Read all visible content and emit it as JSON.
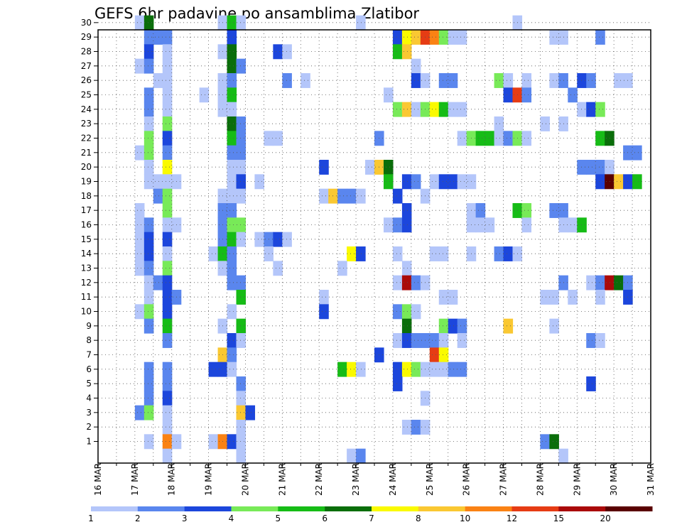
{
  "chart_data": {
    "type": "heatmap",
    "title": "GEFS 6hr padavine po ansamblima Zlatibor",
    "xlabel": "",
    "ylabel": "",
    "x_ticks": [
      "16 MAR",
      "17 MAR",
      "18 MAR",
      "19 MAR",
      "20 MAR",
      "21 MAR",
      "22 MAR",
      "23 MAR",
      "24 MAR",
      "25 MAR",
      "26 MAR",
      "27 MAR",
      "28 MAR",
      "29 MAR",
      "30 MAR",
      "31 MAR"
    ],
    "xlim_days": [
      16,
      31
    ],
    "y_ticks": [
      1,
      2,
      3,
      4,
      5,
      6,
      7,
      8,
      9,
      10,
      11,
      12,
      13,
      14,
      15,
      16,
      17,
      18,
      19,
      20,
      21,
      22,
      23,
      24,
      25,
      26,
      27,
      28,
      29,
      30
    ],
    "ylim": [
      0,
      30
    ],
    "grid": true,
    "time_step_hours": 6,
    "colorbar": {
      "labels": [
        "1",
        "2",
        "3",
        "4",
        "5",
        "6",
        "7",
        "8",
        "10",
        "12",
        "15",
        "20"
      ],
      "colors": [
        "#b4c6fa",
        "#5a86ee",
        "#1c46dc",
        "#78ea58",
        "#16bc16",
        "#0a6e0a",
        "#fafa00",
        "#fac832",
        "#fa8214",
        "#e63c14",
        "#aa0a0a",
        "#5a0000"
      ]
    },
    "cells": [
      [
        30,
        17.0,
        0
      ],
      [
        30,
        17.25,
        5
      ],
      [
        30,
        19.25,
        0
      ],
      [
        30,
        19.5,
        4
      ],
      [
        30,
        19.75,
        0
      ],
      [
        30,
        23.0,
        0
      ],
      [
        30,
        27.25,
        0
      ],
      [
        29,
        17.25,
        1
      ],
      [
        29,
        17.5,
        1
      ],
      [
        29,
        17.75,
        1
      ],
      [
        29,
        19.5,
        2
      ],
      [
        29,
        24.0,
        2
      ],
      [
        29,
        24.25,
        6
      ],
      [
        29,
        24.5,
        7
      ],
      [
        29,
        24.75,
        9
      ],
      [
        29,
        25.0,
        8
      ],
      [
        29,
        25.25,
        3
      ],
      [
        29,
        25.5,
        0
      ],
      [
        29,
        25.75,
        0
      ],
      [
        29,
        28.25,
        0
      ],
      [
        29,
        28.5,
        0
      ],
      [
        29,
        29.5,
        1
      ],
      [
        28,
        17.25,
        2
      ],
      [
        28,
        17.75,
        0
      ],
      [
        28,
        19.25,
        0
      ],
      [
        28,
        19.5,
        5
      ],
      [
        28,
        20.75,
        2
      ],
      [
        28,
        21.0,
        0
      ],
      [
        28,
        24.0,
        4
      ],
      [
        28,
        24.25,
        7
      ],
      [
        27,
        17.0,
        0
      ],
      [
        27,
        17.25,
        1
      ],
      [
        27,
        17.75,
        0
      ],
      [
        27,
        19.5,
        5
      ],
      [
        27,
        19.75,
        1
      ],
      [
        27,
        24.5,
        0
      ],
      [
        26,
        17.5,
        0
      ],
      [
        26,
        17.75,
        0
      ],
      [
        26,
        19.25,
        0
      ],
      [
        26,
        19.5,
        1
      ],
      [
        26,
        21.0,
        1
      ],
      [
        26,
        21.5,
        0
      ],
      [
        26,
        24.5,
        2
      ],
      [
        26,
        24.75,
        0
      ],
      [
        26,
        25.25,
        1
      ],
      [
        26,
        25.5,
        1
      ],
      [
        26,
        26.75,
        3
      ],
      [
        26,
        27.0,
        0
      ],
      [
        26,
        27.5,
        0
      ],
      [
        26,
        28.25,
        0
      ],
      [
        26,
        28.5,
        1
      ],
      [
        26,
        29.0,
        2
      ],
      [
        26,
        29.25,
        1
      ],
      [
        26,
        30.0,
        0
      ],
      [
        26,
        30.25,
        0
      ],
      [
        25,
        17.25,
        1
      ],
      [
        25,
        17.75,
        0
      ],
      [
        25,
        18.75,
        0
      ],
      [
        25,
        19.25,
        0
      ],
      [
        25,
        19.5,
        4
      ],
      [
        25,
        23.75,
        0
      ],
      [
        25,
        27.0,
        2
      ],
      [
        25,
        27.25,
        9
      ],
      [
        25,
        27.5,
        1
      ],
      [
        25,
        28.75,
        1
      ],
      [
        24,
        17.25,
        1
      ],
      [
        24,
        17.75,
        0
      ],
      [
        24,
        19.25,
        0
      ],
      [
        24,
        19.5,
        0
      ],
      [
        24,
        24.0,
        3
      ],
      [
        24,
        24.25,
        7
      ],
      [
        24,
        24.5,
        0
      ],
      [
        24,
        24.75,
        3
      ],
      [
        24,
        25.0,
        6
      ],
      [
        24,
        25.25,
        4
      ],
      [
        24,
        25.5,
        0
      ],
      [
        24,
        25.75,
        0
      ],
      [
        24,
        29.0,
        0
      ],
      [
        24,
        29.25,
        2
      ],
      [
        24,
        29.5,
        3
      ],
      [
        23,
        17.25,
        0
      ],
      [
        23,
        17.75,
        3
      ],
      [
        23,
        19.5,
        5
      ],
      [
        23,
        19.75,
        1
      ],
      [
        23,
        26.75,
        0
      ],
      [
        23,
        28.0,
        0
      ],
      [
        23,
        28.5,
        0
      ],
      [
        22,
        17.25,
        3
      ],
      [
        22,
        17.75,
        2
      ],
      [
        22,
        19.5,
        4
      ],
      [
        22,
        19.75,
        1
      ],
      [
        22,
        20.5,
        0
      ],
      [
        22,
        20.75,
        0
      ],
      [
        22,
        23.5,
        1
      ],
      [
        22,
        25.75,
        0
      ],
      [
        22,
        26.0,
        3
      ],
      [
        22,
        26.25,
        4
      ],
      [
        22,
        26.5,
        4
      ],
      [
        22,
        26.75,
        0
      ],
      [
        22,
        27.0,
        1
      ],
      [
        22,
        27.25,
        3
      ],
      [
        22,
        27.5,
        0
      ],
      [
        22,
        29.5,
        4
      ],
      [
        22,
        29.75,
        5
      ],
      [
        21,
        17.0,
        0
      ],
      [
        21,
        17.25,
        3
      ],
      [
        21,
        17.75,
        1
      ],
      [
        21,
        19.5,
        1
      ],
      [
        21,
        19.75,
        1
      ],
      [
        21,
        30.25,
        1
      ],
      [
        21,
        30.5,
        1
      ],
      [
        20,
        17.25,
        0
      ],
      [
        20,
        17.75,
        6
      ],
      [
        20,
        19.5,
        0
      ],
      [
        20,
        19.75,
        0
      ],
      [
        20,
        22.0,
        2
      ],
      [
        20,
        23.25,
        0
      ],
      [
        20,
        23.5,
        7
      ],
      [
        20,
        23.75,
        5
      ],
      [
        20,
        29.0,
        1
      ],
      [
        20,
        29.25,
        1
      ],
      [
        20,
        29.5,
        1
      ],
      [
        20,
        29.75,
        0
      ],
      [
        19,
        17.25,
        0
      ],
      [
        19,
        17.5,
        0
      ],
      [
        19,
        17.75,
        0
      ],
      [
        19,
        18.0,
        0
      ],
      [
        19,
        19.5,
        0
      ],
      [
        19,
        19.75,
        2
      ],
      [
        19,
        20.25,
        0
      ],
      [
        19,
        23.75,
        4
      ],
      [
        19,
        24.25,
        2
      ],
      [
        19,
        24.5,
        1
      ],
      [
        19,
        25.0,
        0
      ],
      [
        19,
        25.25,
        2
      ],
      [
        19,
        25.5,
        2
      ],
      [
        19,
        25.75,
        0
      ],
      [
        19,
        26.0,
        0
      ],
      [
        19,
        29.5,
        2
      ],
      [
        19,
        29.75,
        11
      ],
      [
        19,
        30.0,
        7
      ],
      [
        19,
        30.25,
        2
      ],
      [
        19,
        30.5,
        4
      ],
      [
        18,
        17.5,
        1
      ],
      [
        18,
        17.75,
        3
      ],
      [
        18,
        19.25,
        0
      ],
      [
        18,
        19.5,
        0
      ],
      [
        18,
        19.75,
        0
      ],
      [
        18,
        22.0,
        0
      ],
      [
        18,
        22.25,
        7
      ],
      [
        18,
        22.5,
        1
      ],
      [
        18,
        22.75,
        1
      ],
      [
        18,
        23.0,
        0
      ],
      [
        18,
        24.0,
        2
      ],
      [
        18,
        24.75,
        0
      ],
      [
        17,
        17.0,
        0
      ],
      [
        17,
        17.75,
        3
      ],
      [
        17,
        19.25,
        1
      ],
      [
        17,
        19.5,
        1
      ],
      [
        17,
        24.25,
        2
      ],
      [
        17,
        26.0,
        0
      ],
      [
        17,
        26.25,
        1
      ],
      [
        17,
        27.25,
        4
      ],
      [
        17,
        27.5,
        3
      ],
      [
        17,
        28.25,
        1
      ],
      [
        17,
        28.5,
        1
      ],
      [
        16,
        17.0,
        0
      ],
      [
        16,
        17.25,
        1
      ],
      [
        16,
        17.75,
        0
      ],
      [
        16,
        18.0,
        0
      ],
      [
        16,
        19.25,
        1
      ],
      [
        16,
        19.5,
        3
      ],
      [
        16,
        19.75,
        3
      ],
      [
        16,
        23.75,
        0
      ],
      [
        16,
        24.0,
        1
      ],
      [
        16,
        24.25,
        2
      ],
      [
        16,
        26.0,
        0
      ],
      [
        16,
        26.25,
        0
      ],
      [
        16,
        26.5,
        0
      ],
      [
        16,
        27.5,
        0
      ],
      [
        16,
        28.5,
        0
      ],
      [
        16,
        28.75,
        0
      ],
      [
        16,
        29.0,
        4
      ],
      [
        15,
        17.0,
        0
      ],
      [
        15,
        17.25,
        2
      ],
      [
        15,
        17.75,
        2
      ],
      [
        15,
        19.25,
        1
      ],
      [
        15,
        19.5,
        4
      ],
      [
        15,
        19.75,
        0
      ],
      [
        15,
        20.25,
        0
      ],
      [
        15,
        20.5,
        1
      ],
      [
        15,
        20.75,
        2
      ],
      [
        15,
        21.0,
        0
      ],
      [
        14,
        17.0,
        0
      ],
      [
        14,
        17.25,
        2
      ],
      [
        14,
        17.75,
        0
      ],
      [
        14,
        19.0,
        0
      ],
      [
        14,
        19.25,
        4
      ],
      [
        14,
        19.5,
        1
      ],
      [
        14,
        20.5,
        0
      ],
      [
        14,
        22.75,
        6
      ],
      [
        14,
        23.0,
        2
      ],
      [
        14,
        24.0,
        0
      ],
      [
        14,
        25.0,
        0
      ],
      [
        14,
        25.25,
        0
      ],
      [
        14,
        26.0,
        0
      ],
      [
        14,
        26.75,
        1
      ],
      [
        14,
        27.0,
        2
      ],
      [
        14,
        27.25,
        0
      ],
      [
        13,
        17.0,
        0
      ],
      [
        13,
        17.25,
        1
      ],
      [
        13,
        17.75,
        3
      ],
      [
        13,
        19.25,
        0
      ],
      [
        13,
        19.5,
        1
      ],
      [
        13,
        20.75,
        0
      ],
      [
        13,
        22.5,
        0
      ],
      [
        13,
        24.25,
        0
      ],
      [
        12,
        17.25,
        0
      ],
      [
        12,
        17.5,
        1
      ],
      [
        12,
        17.75,
        2
      ],
      [
        12,
        19.5,
        1
      ],
      [
        12,
        19.75,
        1
      ],
      [
        12,
        24.0,
        0
      ],
      [
        12,
        24.25,
        10
      ],
      [
        12,
        24.5,
        1
      ],
      [
        12,
        24.75,
        0
      ],
      [
        12,
        28.5,
        1
      ],
      [
        12,
        29.25,
        0
      ],
      [
        12,
        29.5,
        1
      ],
      [
        12,
        29.75,
        10
      ],
      [
        12,
        30.0,
        5
      ],
      [
        12,
        30.25,
        1
      ],
      [
        11,
        17.25,
        0
      ],
      [
        11,
        17.75,
        2
      ],
      [
        11,
        18.0,
        1
      ],
      [
        11,
        19.75,
        4
      ],
      [
        11,
        22.0,
        0
      ],
      [
        11,
        25.25,
        0
      ],
      [
        11,
        25.5,
        0
      ],
      [
        11,
        28.0,
        0
      ],
      [
        11,
        28.25,
        0
      ],
      [
        11,
        28.75,
        0
      ],
      [
        11,
        29.5,
        0
      ],
      [
        11,
        30.25,
        2
      ],
      [
        10,
        17.0,
        0
      ],
      [
        10,
        17.25,
        3
      ],
      [
        10,
        17.75,
        2
      ],
      [
        10,
        19.5,
        0
      ],
      [
        10,
        22.0,
        2
      ],
      [
        10,
        24.0,
        1
      ],
      [
        10,
        24.25,
        3
      ],
      [
        10,
        24.5,
        0
      ],
      [
        9,
        17.25,
        1
      ],
      [
        9,
        17.75,
        4
      ],
      [
        9,
        19.25,
        0
      ],
      [
        9,
        19.75,
        4
      ],
      [
        9,
        24.25,
        5
      ],
      [
        9,
        25.25,
        3
      ],
      [
        9,
        25.5,
        2
      ],
      [
        9,
        25.75,
        1
      ],
      [
        9,
        27.0,
        7
      ],
      [
        9,
        28.25,
        0
      ],
      [
        8,
        17.75,
        1
      ],
      [
        8,
        19.5,
        2
      ],
      [
        8,
        19.75,
        0
      ],
      [
        8,
        24.0,
        0
      ],
      [
        8,
        24.25,
        2
      ],
      [
        8,
        24.5,
        1
      ],
      [
        8,
        24.75,
        1
      ],
      [
        8,
        25.0,
        1
      ],
      [
        8,
        25.25,
        0
      ],
      [
        8,
        25.75,
        0
      ],
      [
        8,
        29.25,
        1
      ],
      [
        8,
        29.5,
        0
      ],
      [
        7,
        19.25,
        7
      ],
      [
        7,
        19.5,
        1
      ],
      [
        7,
        23.5,
        2
      ],
      [
        7,
        25.0,
        9
      ],
      [
        7,
        25.25,
        6
      ],
      [
        6,
        17.25,
        1
      ],
      [
        6,
        17.75,
        1
      ],
      [
        6,
        19.0,
        2
      ],
      [
        6,
        19.25,
        2
      ],
      [
        6,
        19.5,
        0
      ],
      [
        6,
        22.5,
        4
      ],
      [
        6,
        22.75,
        6
      ],
      [
        6,
        23.0,
        0
      ],
      [
        6,
        24.0,
        2
      ],
      [
        6,
        24.25,
        6
      ],
      [
        6,
        24.5,
        3
      ],
      [
        6,
        24.75,
        0
      ],
      [
        6,
        25.0,
        0
      ],
      [
        6,
        25.25,
        0
      ],
      [
        6,
        25.5,
        1
      ],
      [
        6,
        25.75,
        1
      ],
      [
        5,
        17.25,
        1
      ],
      [
        5,
        17.75,
        1
      ],
      [
        5,
        19.75,
        1
      ],
      [
        5,
        24.0,
        2
      ],
      [
        5,
        29.25,
        2
      ],
      [
        4,
        17.25,
        1
      ],
      [
        4,
        17.75,
        2
      ],
      [
        4,
        19.75,
        0
      ],
      [
        4,
        24.75,
        0
      ],
      [
        3,
        17.0,
        1
      ],
      [
        3,
        17.25,
        3
      ],
      [
        3,
        17.75,
        0
      ],
      [
        3,
        19.75,
        7
      ],
      [
        3,
        20.0,
        2
      ],
      [
        2,
        17.75,
        0
      ],
      [
        2,
        19.75,
        0
      ],
      [
        2,
        24.25,
        0
      ],
      [
        2,
        24.5,
        1
      ],
      [
        2,
        24.75,
        0
      ],
      [
        1,
        17.25,
        0
      ],
      [
        1,
        17.75,
        8
      ],
      [
        1,
        18.0,
        0
      ],
      [
        1,
        19.0,
        0
      ],
      [
        1,
        19.25,
        8
      ],
      [
        1,
        19.5,
        2
      ],
      [
        1,
        19.75,
        0
      ],
      [
        1,
        28.0,
        1
      ],
      [
        1,
        28.25,
        5
      ],
      [
        0,
        17.75,
        0
      ],
      [
        0,
        19.75,
        0
      ],
      [
        0,
        22.75,
        0
      ],
      [
        0,
        23.0,
        1
      ],
      [
        0,
        28.5,
        0
      ]
    ]
  }
}
